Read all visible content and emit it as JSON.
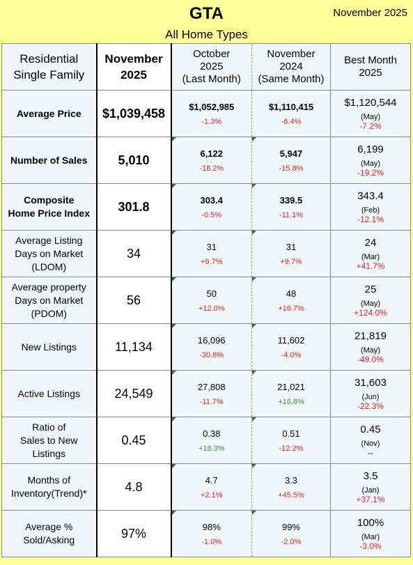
{
  "header": {
    "title": "GTA",
    "subtitle": "All Home Types",
    "date": "November 2025"
  },
  "columns": {
    "label_line1": "Residential",
    "label_line2": "Single Family",
    "current_line1": "November",
    "current_line2": "2025",
    "last_month_line1": "October",
    "last_month_line2": "2025",
    "last_month_line3": "(Last Month)",
    "same_month_line1": "November",
    "same_month_line2": "2024",
    "same_month_line3": "(Same Month)",
    "best_line1": "Best Month",
    "best_line2": "2025"
  },
  "rows": [
    {
      "label1": "Average Price",
      "label2": "",
      "label3": "",
      "current": "$1,039,458",
      "last": "$1,052,985",
      "last_pct": "-1.3%",
      "same": "$1,110,415",
      "same_pct": "-6.4%",
      "best": "$1,120,544",
      "best_month": "(May)",
      "best_pct": "-7.2%"
    },
    {
      "label1": "Number of Sales",
      "label2": "",
      "label3": "",
      "current": "5,010",
      "last": "6,122",
      "last_pct": "-18.2%",
      "same": "5,947",
      "same_pct": "-15.8%",
      "best": "6,199",
      "best_month": "(May)",
      "best_pct": "-19.2%"
    },
    {
      "label1": "Composite",
      "label2": "Home Price Index",
      "label3": "",
      "current": "301.8",
      "last": "303.4",
      "last_pct": "-0.5%",
      "same": "339.5",
      "same_pct": "-11.1%",
      "best": "343.4",
      "best_month": "(Feb)",
      "best_pct": "-12.1%"
    },
    {
      "label1": "Average Listing",
      "label2": "Days on Market",
      "label3": "(LDOM)",
      "current": "34",
      "last": "31",
      "last_pct": "+9.7%",
      "same": "31",
      "same_pct": "+9.7%",
      "best": "24",
      "best_month": "(Mar)",
      "best_pct": "+41.7%"
    },
    {
      "label1": "Average property",
      "label2": "Days on Market",
      "label3": "(PDOM)",
      "current": "56",
      "last": "50",
      "last_pct": "+12.0%",
      "same": "48",
      "same_pct": "+16.7%",
      "best": "25",
      "best_month": "(May)",
      "best_pct": "+124.0%"
    },
    {
      "label1": "New Listings",
      "label2": "",
      "label3": "",
      "current": "11,134",
      "last": "16,096",
      "last_pct": "-30.8%",
      "same": "11,602",
      "same_pct": "-4.0%",
      "best": "21,819",
      "best_month": "(May)",
      "best_pct": "-49.0%"
    },
    {
      "label1": "Active Listings",
      "label2": "",
      "label3": "",
      "current": "24,549",
      "last": "27,808",
      "last_pct": "-11.7%",
      "same": "21,021",
      "same_pct": "+16.8%",
      "best": "31,603",
      "best_month": "(Jun)",
      "best_pct": "-22.3%"
    },
    {
      "label1": "Ratio of",
      "label2": "Sales to New",
      "label3": "Listings",
      "current": "0.45",
      "last": "0.38",
      "last_pct": "+18.3%",
      "same": "0.51",
      "same_pct": "-12.2%",
      "best": "0.45",
      "best_month": "(Nov)",
      "best_pct": "--"
    },
    {
      "label1": "Months of",
      "label2": "Inventory(Trend)*",
      "label3": "",
      "current": "4.8",
      "last": "4.7",
      "last_pct": "+2.1%",
      "same": "3.3",
      "same_pct": "+45.5%",
      "best": "3.5",
      "best_month": "(Jan)",
      "best_pct": "+37.1%"
    },
    {
      "label1": "Average %",
      "label2": "Sold/Asking",
      "label3": "",
      "current": "97%",
      "last": "98%",
      "last_pct": "-1.0%",
      "same": "99%",
      "same_pct": "-2.0%",
      "best": "100%",
      "best_month": "(Mar)",
      "best_pct": "-3.0%"
    }
  ],
  "colors": {
    "negative": "#e0201b",
    "positive_green": "#3f8f3f",
    "background": "#ffff99"
  }
}
